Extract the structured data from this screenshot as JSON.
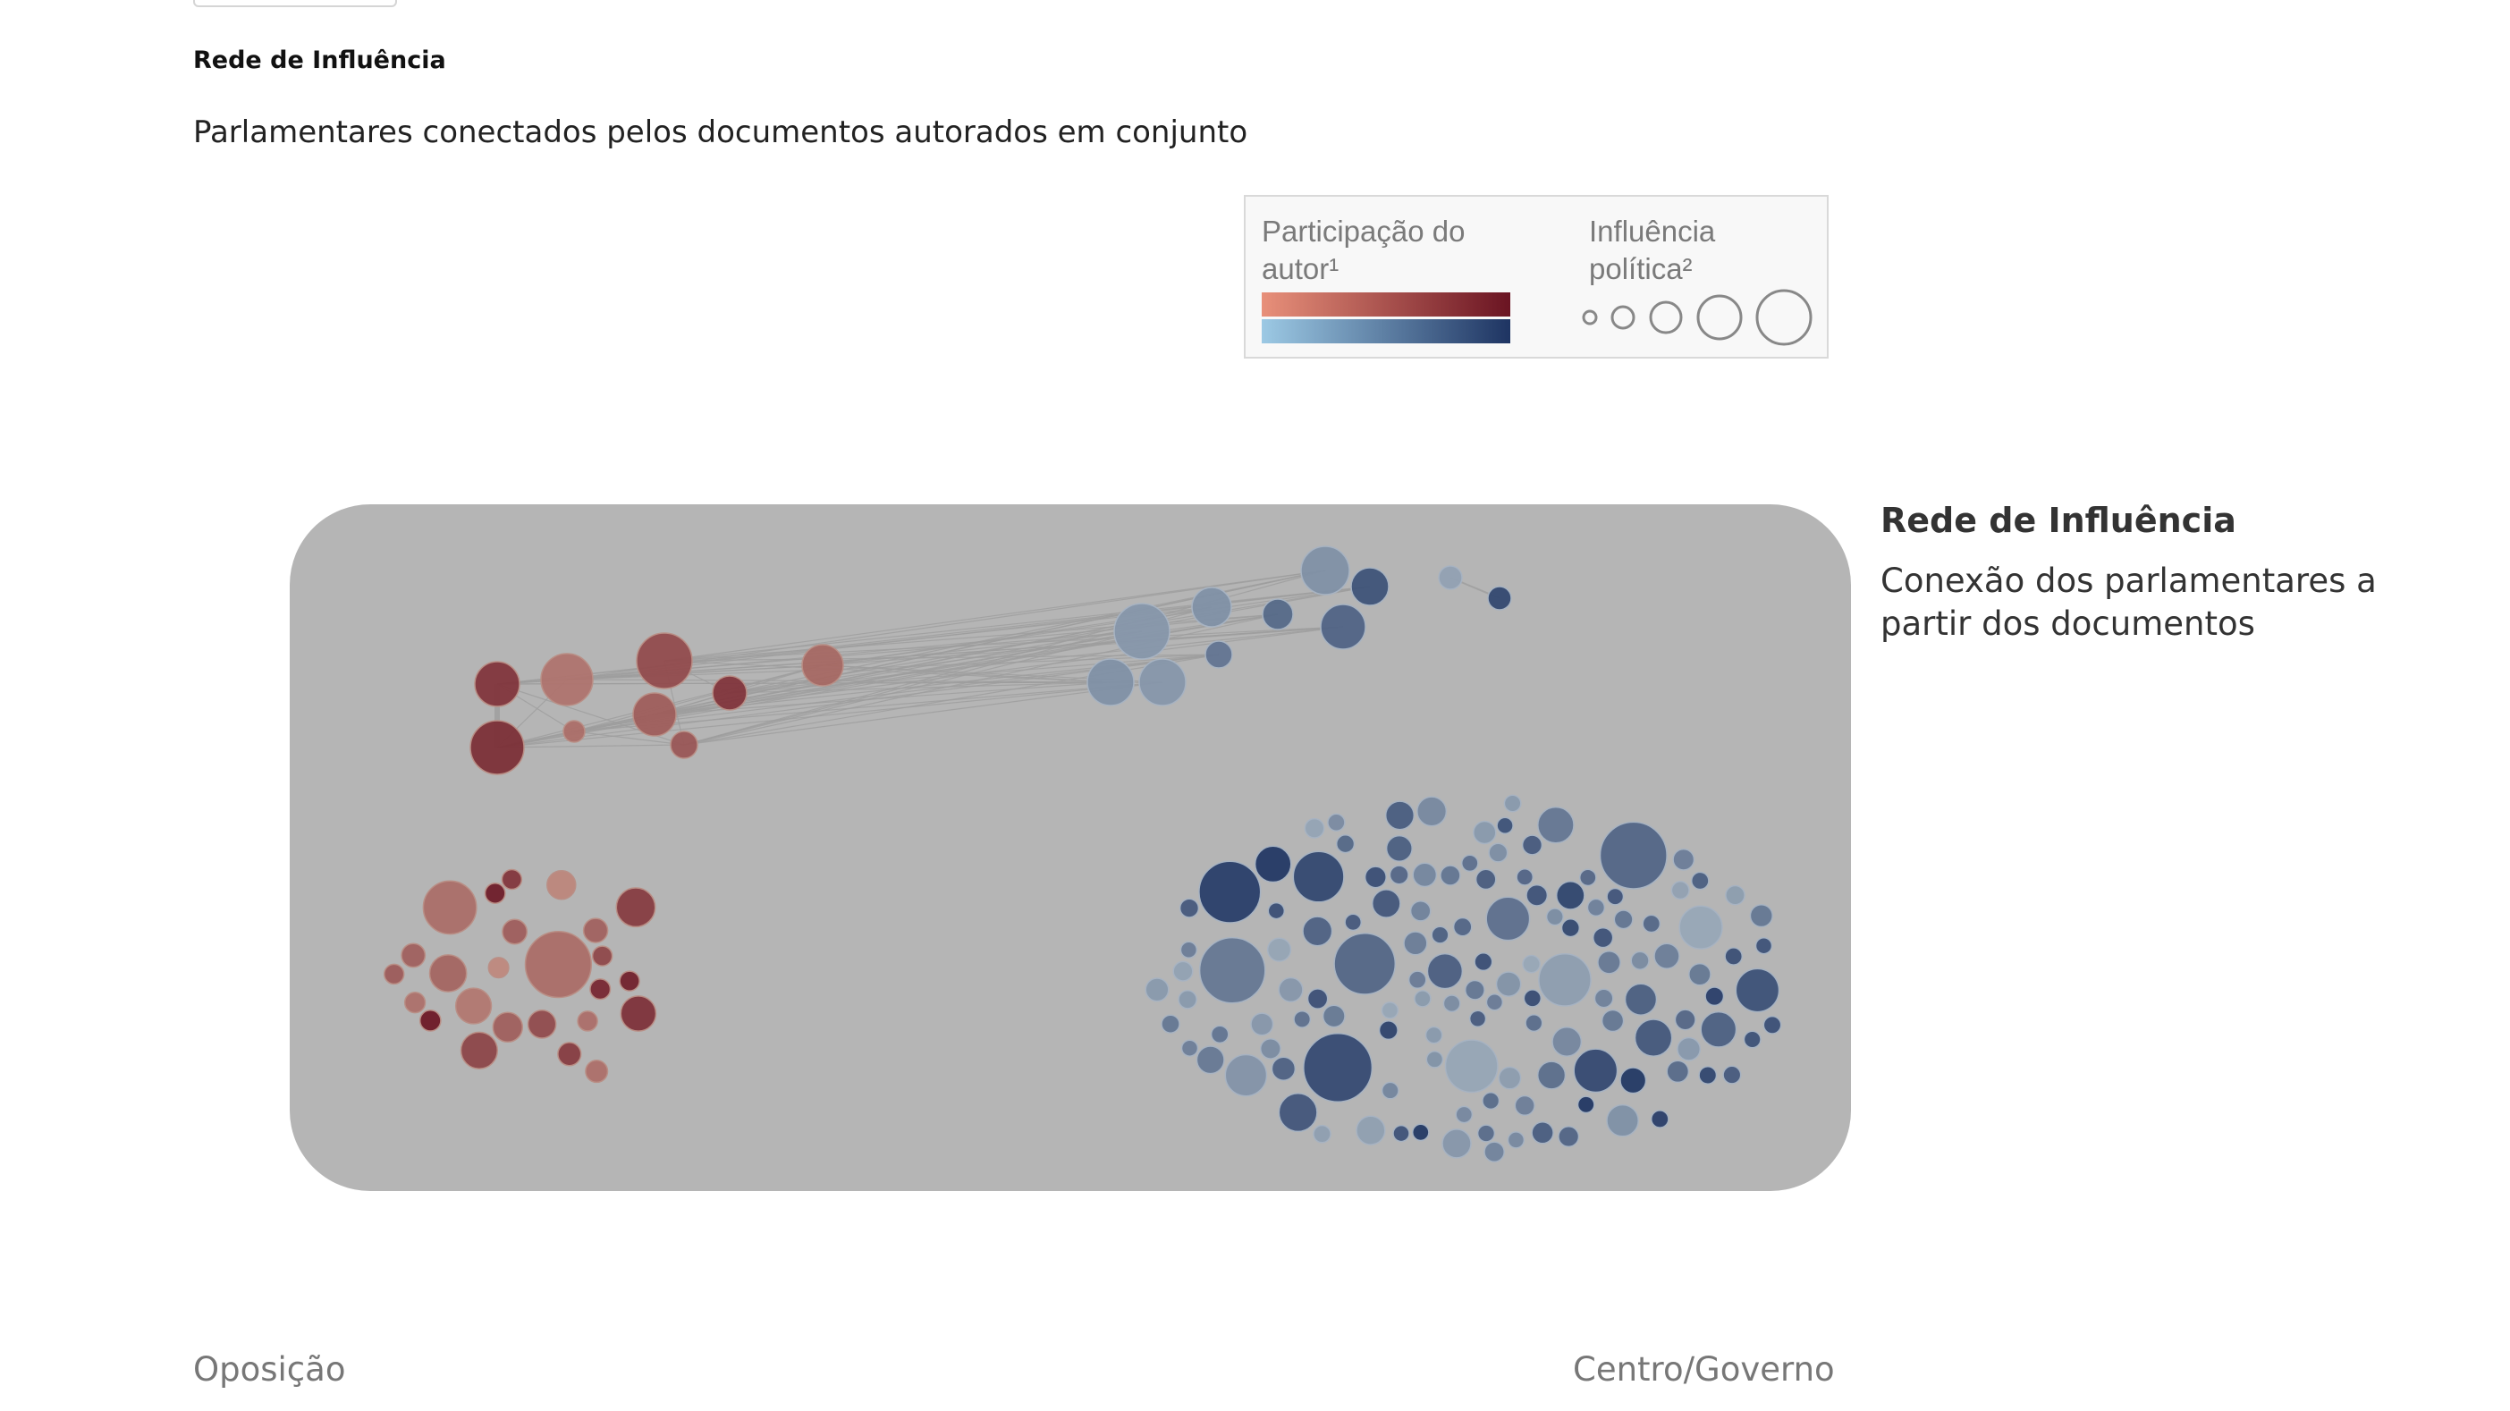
{
  "header": {
    "section_label": "Rede de Influência",
    "subtitle": "Parlamentares conectados pelos documentos autorados em conjunto"
  },
  "legend": {
    "color_title": "Participação do autor¹",
    "size_title": "Influência política²",
    "colors": {
      "opposition_gradient": [
        "#e8907a",
        "#6a1422"
      ],
      "government_gradient": [
        "#9cc9e4",
        "#1e3462"
      ]
    }
  },
  "side": {
    "title": "Rede de Influência",
    "description": "Conexão dos parlamentares a partir dos documentos"
  },
  "axis": {
    "left_label": "Oposição",
    "right_label": "Centro/Governo"
  },
  "colors": {
    "panel_background": "#b5b5b5",
    "link": "#9e9e9e"
  },
  "chart_data": {
    "type": "network",
    "groups": [
      "Oposição",
      "Centro/Governo"
    ],
    "connected_component": {
      "opposition_nodes": 9,
      "government_nodes": 11,
      "isolated_pair": 2
    },
    "clusters": [
      {
        "group": "Oposição",
        "nodes": 25
      },
      {
        "group": "Centro/Governo",
        "nodes": 130
      }
    ]
  }
}
